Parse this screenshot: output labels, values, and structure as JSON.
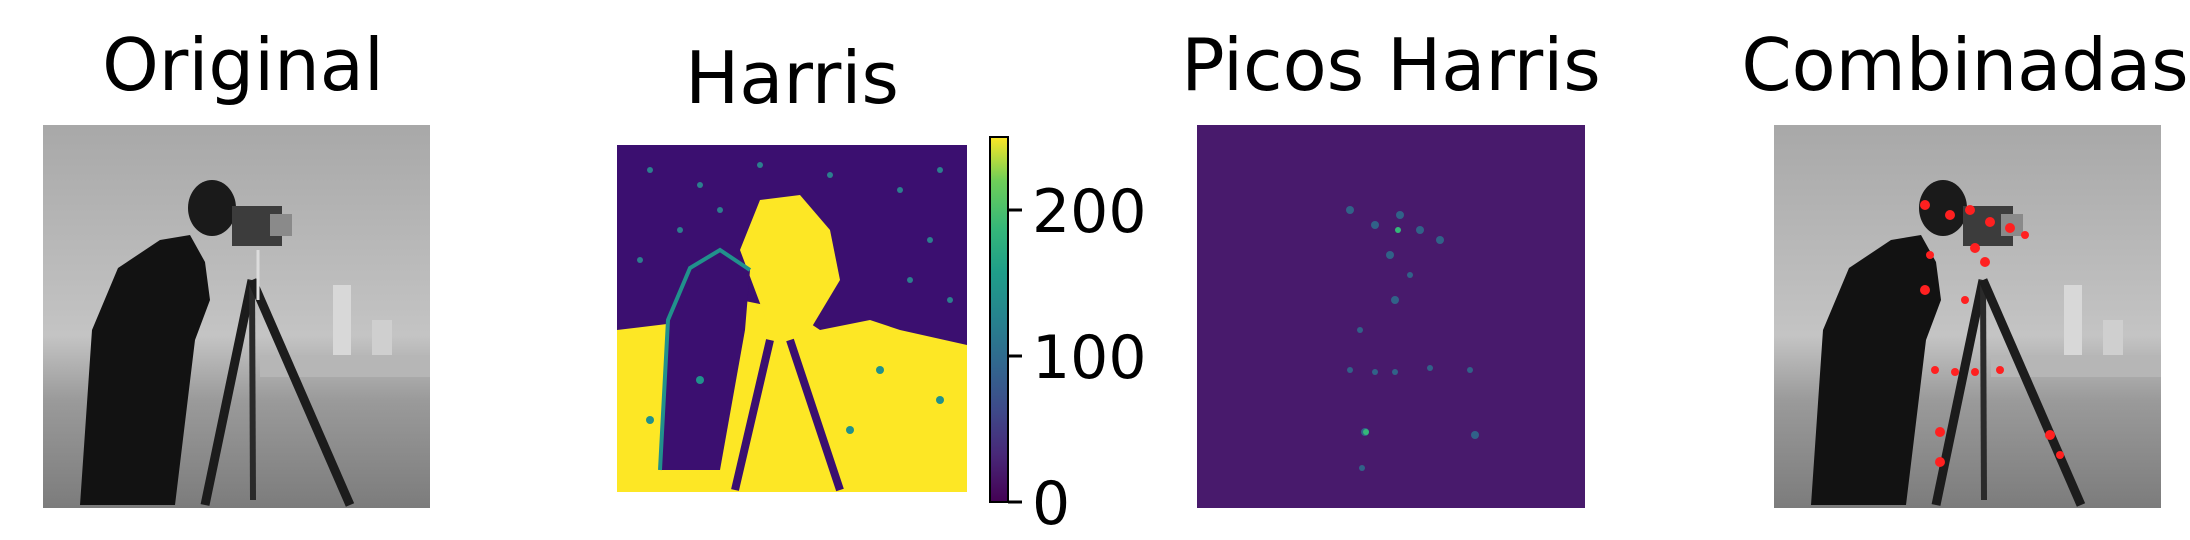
{
  "chart_data": [
    {
      "type": "image",
      "title": "Original",
      "content": "grayscale photograph: man with camera on tripod",
      "colormap": "gray"
    },
    {
      "type": "heatmap",
      "title": "Harris",
      "colormap": "viridis",
      "colorbar": {
        "range": [
          0,
          250
        ],
        "ticks": [
          0,
          100,
          200
        ],
        "tick_labels": [
          "0",
          "100",
          "200"
        ]
      }
    },
    {
      "type": "heatmap",
      "title": "Picos Harris",
      "colormap": "viridis",
      "content": "sparse dim peaks on dark background"
    },
    {
      "type": "image",
      "title": "Combinadas",
      "content": "original photograph with Harris peaks marked in red",
      "marker_color": "#ff0000"
    }
  ],
  "colors": {
    "viridis_low": "#440154",
    "viridis_mid": "#21918c",
    "viridis_high": "#fde725",
    "peaks_background": "#481a6c",
    "marker_red": "#ff2020"
  }
}
